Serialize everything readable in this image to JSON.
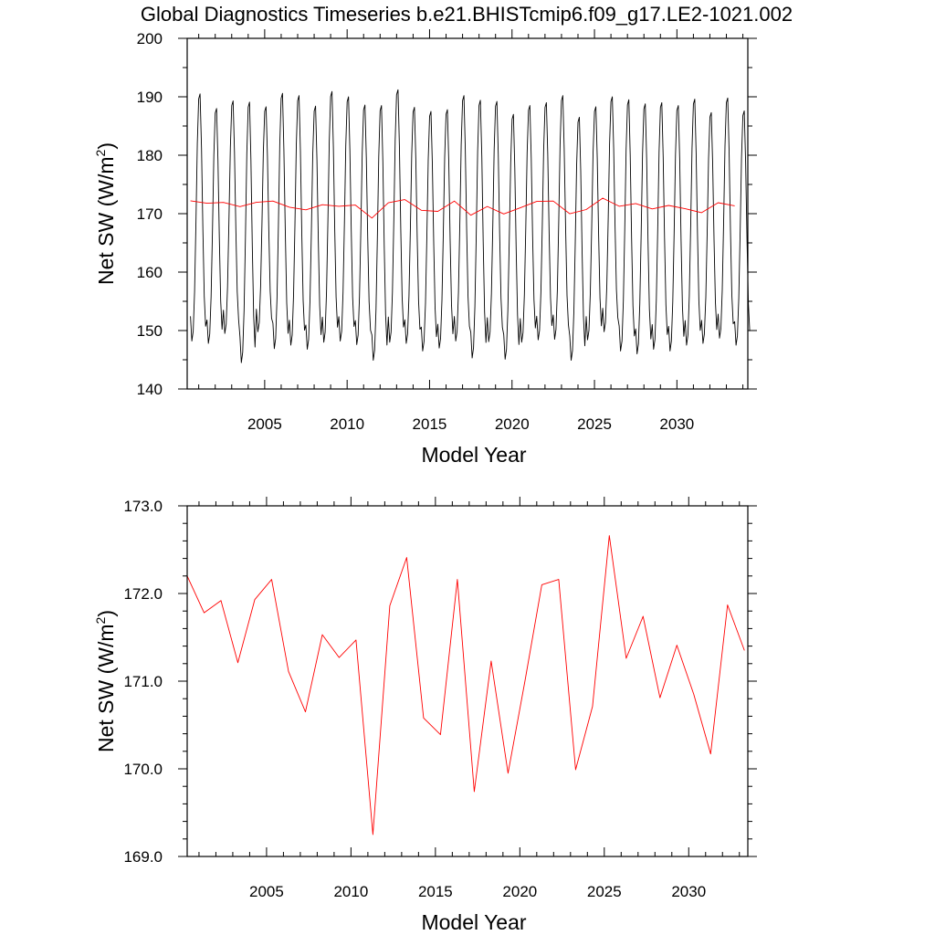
{
  "title": "Global Diagnostics Timeseries b.e21.BHISTcmip6.f09_g17.LE2-1021.002",
  "chart_data": [
    {
      "type": "line",
      "xlabel": "Model Year",
      "ylabel": "Net SW (W/m",
      "ylabel_sup": "2",
      "ylabel_close": ")",
      "xlim": [
        2000.3,
        2034.3
      ],
      "ylim": [
        140,
        200
      ],
      "x_ticks": [
        2005,
        2010,
        2015,
        2020,
        2025,
        2030
      ],
      "x_tick_labels": [
        "2005",
        "2010",
        "2015",
        "2020",
        "2025",
        "2030"
      ],
      "y_ticks": [
        140,
        150,
        160,
        170,
        180,
        190,
        200
      ],
      "y_tick_labels": [
        "140",
        "150",
        "160",
        "170",
        "180",
        "190",
        "200"
      ],
      "grid": false,
      "series": [
        {
          "role": "monthly",
          "color": "#000000",
          "start_year": 2000.5,
          "monthly_shape": [
            0.1,
            0.0,
            0.04,
            0.2,
            0.48,
            0.8,
            0.98,
            1.0,
            0.78,
            0.45,
            0.18,
            0.06
          ],
          "annual_min": [
            148.2,
            147.8,
            149.5,
            144.5,
            149.8,
            146.9,
            147.5,
            146.8,
            148.0,
            148.2,
            147.6,
            144.9,
            148.0,
            147.8,
            146.5,
            147.0,
            148.2,
            145.3,
            148.1,
            145.1,
            148.0,
            148.4,
            148.5,
            144.9,
            148.4,
            149.8,
            146.5,
            146.0,
            146.8,
            146.5,
            147.5,
            147.8,
            148.7,
            147.5
          ],
          "annual_max": [
            190.5,
            188.0,
            189.3,
            189.1,
            188.3,
            190.6,
            190.2,
            188.4,
            190.9,
            190.0,
            188.6,
            188.5,
            191.2,
            188.2,
            187.5,
            187.8,
            190.2,
            189.4,
            189.2,
            187.0,
            188.5,
            189.0,
            190.2,
            186.5,
            188.3,
            190.0,
            189.5,
            188.8,
            189.0,
            188.5,
            189.6,
            187.3,
            189.8,
            187.6
          ]
        },
        {
          "role": "annual_mean",
          "color": "#ff0000",
          "x": [
            2000.5,
            2001.5,
            2002.5,
            2003.5,
            2004.5,
            2005.5,
            2006.5,
            2007.5,
            2008.5,
            2009.5,
            2010.5,
            2011.5,
            2012.5,
            2013.5,
            2014.5,
            2015.5,
            2016.5,
            2017.5,
            2018.5,
            2019.5,
            2020.5,
            2021.5,
            2022.5,
            2023.5,
            2024.5,
            2025.5,
            2026.5,
            2027.5,
            2028.5,
            2029.5,
            2030.5,
            2031.5,
            2032.5,
            2033.5
          ],
          "values": [
            172.2,
            171.78,
            171.92,
            171.21,
            171.93,
            172.16,
            171.11,
            170.65,
            171.53,
            171.27,
            171.47,
            169.25,
            171.86,
            172.41,
            170.58,
            170.39,
            172.16,
            169.74,
            171.23,
            169.95,
            171.0,
            172.1,
            172.16,
            169.99,
            170.71,
            172.66,
            171.26,
            171.74,
            170.81,
            171.41,
            170.85,
            170.17,
            171.87,
            171.35
          ]
        }
      ]
    },
    {
      "type": "line",
      "xlabel": "Model Year",
      "ylabel": "Net SW (W/m",
      "ylabel_sup": "2",
      "ylabel_close": ")",
      "xlim": [
        2000.3,
        2033.5
      ],
      "ylim": [
        169.0,
        173.0
      ],
      "x_ticks": [
        2005,
        2010,
        2015,
        2020,
        2025,
        2030
      ],
      "x_tick_labels": [
        "2005",
        "2010",
        "2015",
        "2020",
        "2025",
        "2030"
      ],
      "y_ticks": [
        169.0,
        170.0,
        171.0,
        172.0,
        173.0
      ],
      "y_tick_labels": [
        "169.0",
        "170.0",
        "171.0",
        "172.0",
        "173.0"
      ],
      "grid": false,
      "series": [
        {
          "role": "annual_mean",
          "color": "#ff0000",
          "x": [
            2000.3,
            2001.3,
            2002.3,
            2003.3,
            2004.3,
            2005.3,
            2006.3,
            2007.3,
            2008.3,
            2009.3,
            2010.3,
            2011.3,
            2012.3,
            2013.3,
            2014.3,
            2015.3,
            2016.3,
            2017.3,
            2018.3,
            2019.3,
            2020.3,
            2021.3,
            2022.3,
            2023.3,
            2024.3,
            2025.3,
            2026.3,
            2027.3,
            2028.3,
            2029.3,
            2030.3,
            2031.3,
            2032.3,
            2033.3
          ],
          "values": [
            172.2,
            171.78,
            171.92,
            171.21,
            171.93,
            172.16,
            171.11,
            170.65,
            171.53,
            171.27,
            171.47,
            169.25,
            171.86,
            172.41,
            170.58,
            170.39,
            172.16,
            169.74,
            171.23,
            169.95,
            171.0,
            172.1,
            172.16,
            169.99,
            170.71,
            172.66,
            171.26,
            171.74,
            170.81,
            171.41,
            170.85,
            170.17,
            171.87,
            171.35
          ]
        }
      ]
    }
  ]
}
